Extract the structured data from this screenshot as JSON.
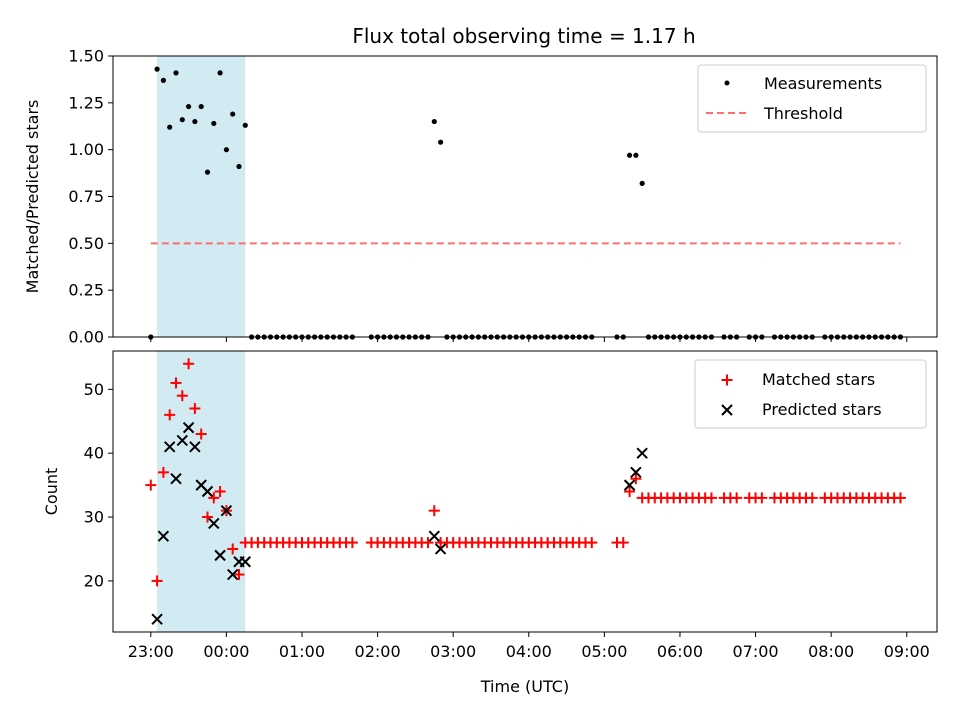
{
  "chart_data": [
    {
      "type": "scatter",
      "title": "Flux total observing time = 1.17 h",
      "xlabel": "",
      "ylabel": "Matched/Predicted stars",
      "ylim": [
        0,
        1.5
      ],
      "yticks": [
        "0.00",
        "0.25",
        "0.50",
        "0.75",
        "1.00",
        "1.25",
        "1.50"
      ],
      "shaded_span": {
        "start": "23:05",
        "end": "00:15",
        "color": "#add8e6"
      },
      "legend_position": "top-right",
      "series": [
        {
          "name": "Measurements",
          "marker": "dot",
          "color": "#000000",
          "x": [
            "23:00",
            "23:05",
            "23:10",
            "23:15",
            "23:20",
            "23:25",
            "23:30",
            "23:35",
            "23:40",
            "23:45",
            "23:50",
            "23:55",
            "00:00",
            "00:05",
            "00:10",
            "00:15",
            "00:20",
            "00:25",
            "00:30",
            "00:35",
            "00:40",
            "00:45",
            "00:50",
            "00:55",
            "01:00",
            "01:05",
            "01:10",
            "01:15",
            "01:20",
            "01:25",
            "01:30",
            "01:35",
            "01:40",
            "01:55",
            "02:00",
            "02:05",
            "02:10",
            "02:15",
            "02:20",
            "02:25",
            "02:30",
            "02:35",
            "02:40",
            "02:45",
            "02:50",
            "02:55",
            "03:00",
            "03:05",
            "03:10",
            "03:15",
            "03:20",
            "03:25",
            "03:30",
            "03:35",
            "03:40",
            "03:45",
            "03:50",
            "03:55",
            "04:00",
            "04:05",
            "04:10",
            "04:15",
            "04:20",
            "04:25",
            "04:30",
            "04:35",
            "04:40",
            "04:45",
            "04:50",
            "05:10",
            "05:15",
            "05:20",
            "05:25",
            "05:30",
            "05:35",
            "05:40",
            "05:45",
            "05:50",
            "05:55",
            "06:00",
            "06:05",
            "06:10",
            "06:15",
            "06:20",
            "06:25",
            "06:35",
            "06:40",
            "06:45",
            "06:55",
            "07:00",
            "07:05",
            "07:15",
            "07:20",
            "07:25",
            "07:30",
            "07:35",
            "07:40",
            "07:45",
            "07:55",
            "08:00",
            "08:05",
            "08:10",
            "08:15",
            "08:20",
            "08:25",
            "08:30",
            "08:35",
            "08:40",
            "08:45",
            "08:50",
            "08:55"
          ],
          "y": [
            0,
            1.43,
            1.37,
            1.12,
            1.41,
            1.16,
            1.23,
            1.15,
            1.23,
            0.88,
            1.14,
            1.41,
            1.0,
            1.19,
            0.91,
            1.13,
            0,
            0,
            0,
            0,
            0,
            0,
            0,
            0,
            0,
            0,
            0,
            0,
            0,
            0,
            0,
            0,
            0,
            0,
            0,
            0,
            0,
            0,
            0,
            0,
            0,
            0,
            0,
            1.15,
            1.04,
            0,
            0,
            0,
            0,
            0,
            0,
            0,
            0,
            0,
            0,
            0,
            0,
            0,
            0,
            0,
            0,
            0,
            0,
            0,
            0,
            0,
            0,
            0,
            0,
            0,
            0,
            0.97,
            0.97,
            0.82,
            0,
            0,
            0,
            0,
            0,
            0,
            0,
            0,
            0,
            0,
            0,
            0,
            0,
            0,
            0,
            0,
            0,
            0,
            0,
            0,
            0,
            0,
            0,
            0,
            0,
            0,
            0,
            0,
            0,
            0,
            0,
            0,
            0,
            0,
            0,
            0,
            0
          ]
        },
        {
          "name": "Threshold",
          "line": "dashed",
          "color": "#ff6f6f",
          "x": [
            "23:00",
            "08:55"
          ],
          "y": [
            0.5,
            0.5
          ]
        }
      ]
    },
    {
      "type": "scatter",
      "title": "",
      "xlabel": "Time (UTC)",
      "ylabel": "Count",
      "ylim": [
        12,
        56
      ],
      "yticks": [
        "20",
        "30",
        "40",
        "50"
      ],
      "xticks": [
        "23:00",
        "00:00",
        "01:00",
        "02:00",
        "03:00",
        "04:00",
        "05:00",
        "06:00",
        "07:00",
        "08:00",
        "09:00"
      ],
      "shaded_span": {
        "start": "23:05",
        "end": "00:15",
        "color": "#add8e6"
      },
      "legend_position": "top-right",
      "series": [
        {
          "name": "Matched stars",
          "marker": "plus",
          "color": "#ff0000",
          "x": [
            "23:00",
            "23:05",
            "23:10",
            "23:15",
            "23:20",
            "23:25",
            "23:30",
            "23:35",
            "23:40",
            "23:45",
            "23:50",
            "23:55",
            "00:00",
            "00:05",
            "00:10",
            "00:15",
            "00:20",
            "00:25",
            "00:30",
            "00:35",
            "00:40",
            "00:45",
            "00:50",
            "00:55",
            "01:00",
            "01:05",
            "01:10",
            "01:15",
            "01:20",
            "01:25",
            "01:30",
            "01:35",
            "01:40",
            "01:55",
            "02:00",
            "02:05",
            "02:10",
            "02:15",
            "02:20",
            "02:25",
            "02:30",
            "02:35",
            "02:40",
            "02:45",
            "02:50",
            "02:55",
            "03:00",
            "03:05",
            "03:10",
            "03:15",
            "03:20",
            "03:25",
            "03:30",
            "03:35",
            "03:40",
            "03:45",
            "03:50",
            "03:55",
            "04:00",
            "04:05",
            "04:10",
            "04:15",
            "04:20",
            "04:25",
            "04:30",
            "04:35",
            "04:40",
            "04:45",
            "04:50",
            "05:10",
            "05:15",
            "05:20",
            "05:25",
            "05:30",
            "05:35",
            "05:40",
            "05:45",
            "05:50",
            "05:55",
            "06:00",
            "06:05",
            "06:10",
            "06:15",
            "06:20",
            "06:25",
            "06:35",
            "06:40",
            "06:45",
            "06:55",
            "07:00",
            "07:05",
            "07:15",
            "07:20",
            "07:25",
            "07:30",
            "07:35",
            "07:40",
            "07:45",
            "07:55",
            "08:00",
            "08:05",
            "08:10",
            "08:15",
            "08:20",
            "08:25",
            "08:30",
            "08:35",
            "08:40",
            "08:45",
            "08:50",
            "08:55"
          ],
          "y": [
            35,
            20,
            37,
            46,
            51,
            49,
            54,
            47,
            43,
            30,
            33,
            34,
            31,
            25,
            21,
            26,
            26,
            26,
            26,
            26,
            26,
            26,
            26,
            26,
            26,
            26,
            26,
            26,
            26,
            26,
            26,
            26,
            26,
            26,
            26,
            26,
            26,
            26,
            26,
            26,
            26,
            26,
            26,
            31,
            26,
            26,
            26,
            26,
            26,
            26,
            26,
            26,
            26,
            26,
            26,
            26,
            26,
            26,
            26,
            26,
            26,
            26,
            26,
            26,
            26,
            26,
            26,
            26,
            26,
            26,
            26,
            34,
            36,
            33,
            33,
            33,
            33,
            33,
            33,
            33,
            33,
            33,
            33,
            33,
            33,
            33,
            33,
            33,
            33,
            33,
            33,
            33,
            33,
            33,
            33,
            33,
            33,
            33,
            33,
            33,
            33,
            33,
            33,
            33,
            33,
            33,
            33,
            33,
            33,
            33,
            33
          ]
        },
        {
          "name": "Predicted stars",
          "marker": "x",
          "color": "#000000",
          "x": [
            "23:05",
            "23:10",
            "23:15",
            "23:20",
            "23:25",
            "23:30",
            "23:35",
            "23:40",
            "23:45",
            "23:50",
            "23:55",
            "00:00",
            "00:05",
            "00:10",
            "00:15",
            "02:45",
            "02:50",
            "05:20",
            "05:25",
            "05:30"
          ],
          "y": [
            14,
            27,
            41,
            36,
            42,
            44,
            41,
            35,
            34,
            29,
            24,
            31,
            21,
            23,
            23,
            27,
            25,
            35,
            37,
            40
          ]
        }
      ]
    }
  ]
}
